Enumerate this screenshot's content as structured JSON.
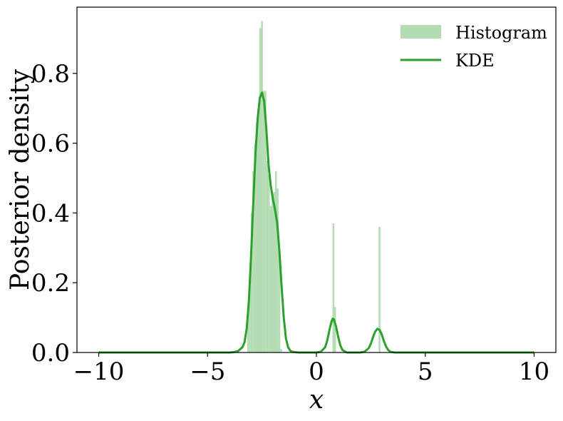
{
  "chart_data": {
    "type": "bar",
    "xlabel": "x",
    "ylabel": "Posterior density",
    "xlim": [
      -11.0,
      11.0
    ],
    "ylim": [
      0.0,
      0.99
    ],
    "xticks": [
      -10,
      -5,
      0,
      5,
      10
    ],
    "xtick_labels": [
      "−10",
      "−5",
      "0",
      "5",
      "10"
    ],
    "yticks": [
      0.0,
      0.2,
      0.4,
      0.6,
      0.8
    ],
    "ytick_labels": [
      "0.0",
      "0.2",
      "0.4",
      "0.6",
      "0.8"
    ],
    "grid": false,
    "legend_position": "top-right",
    "colors": {
      "histogram": "#b3dcb2",
      "kde": "#2ca02c"
    },
    "series": [
      {
        "name": "Histogram",
        "kind": "histogram",
        "bins": [
          {
            "x0": -3.18,
            "x1": -3.1,
            "value": 0.1
          },
          {
            "x0": -3.1,
            "x1": -3.02,
            "value": 0.18
          },
          {
            "x0": -3.02,
            "x1": -2.94,
            "value": 0.4
          },
          {
            "x0": -2.94,
            "x1": -2.86,
            "value": 0.52
          },
          {
            "x0": -2.86,
            "x1": -2.78,
            "value": 0.6
          },
          {
            "x0": -2.78,
            "x1": -2.7,
            "value": 0.66
          },
          {
            "x0": -2.7,
            "x1": -2.62,
            "value": 0.7
          },
          {
            "x0": -2.62,
            "x1": -2.54,
            "value": 0.93
          },
          {
            "x0": -2.54,
            "x1": -2.46,
            "value": 0.95
          },
          {
            "x0": -2.46,
            "x1": -2.38,
            "value": 0.75
          },
          {
            "x0": -2.38,
            "x1": -2.3,
            "value": 0.75
          },
          {
            "x0": -2.3,
            "x1": -2.22,
            "value": 0.55
          },
          {
            "x0": -2.22,
            "x1": -2.14,
            "value": 0.51
          },
          {
            "x0": -2.14,
            "x1": -2.06,
            "value": 0.42
          },
          {
            "x0": -2.06,
            "x1": -1.98,
            "value": 0.44
          },
          {
            "x0": -1.98,
            "x1": -1.9,
            "value": 0.46
          },
          {
            "x0": -1.9,
            "x1": -1.82,
            "value": 0.52
          },
          {
            "x0": -1.82,
            "x1": -1.74,
            "value": 0.47
          },
          {
            "x0": -1.74,
            "x1": -1.66,
            "value": 0.3
          },
          {
            "x0": -1.66,
            "x1": -1.58,
            "value": 0.01
          },
          {
            "x0": 0.74,
            "x1": 0.82,
            "value": 0.37
          },
          {
            "x0": 0.82,
            "x1": 0.9,
            "value": 0.13
          },
          {
            "x0": 2.86,
            "x1": 2.94,
            "value": 0.36
          }
        ]
      },
      {
        "name": "KDE",
        "kind": "line",
        "x": [
          -10.0,
          -9.0,
          -8.0,
          -7.0,
          -6.0,
          -5.0,
          -4.5,
          -4.0,
          -3.8,
          -3.6,
          -3.4,
          -3.3,
          -3.2,
          -3.1,
          -3.0,
          -2.9,
          -2.8,
          -2.7,
          -2.6,
          -2.5,
          -2.4,
          -2.3,
          -2.2,
          -2.1,
          -2.0,
          -1.9,
          -1.8,
          -1.7,
          -1.6,
          -1.5,
          -1.4,
          -1.3,
          -1.2,
          -1.1,
          -1.0,
          -0.8,
          -0.6,
          -0.4,
          -0.2,
          0.0,
          0.2,
          0.4,
          0.5,
          0.6,
          0.7,
          0.75,
          0.8,
          0.9,
          1.0,
          1.1,
          1.2,
          1.4,
          1.6,
          1.8,
          2.0,
          2.2,
          2.4,
          2.5,
          2.6,
          2.7,
          2.8,
          2.9,
          3.0,
          3.1,
          3.2,
          3.3,
          3.4,
          3.6,
          3.8,
          4.0,
          5.0,
          6.0,
          7.0,
          8.0,
          9.0,
          10.0
        ],
        "y": [
          0.0,
          0.0,
          0.0,
          0.0,
          0.0,
          0.0,
          0.0,
          0.0,
          0.001,
          0.004,
          0.015,
          0.03,
          0.07,
          0.15,
          0.28,
          0.43,
          0.57,
          0.67,
          0.73,
          0.745,
          0.72,
          0.64,
          0.54,
          0.48,
          0.44,
          0.41,
          0.37,
          0.29,
          0.19,
          0.1,
          0.04,
          0.015,
          0.005,
          0.002,
          0.001,
          0.0,
          0.0,
          0.0,
          0.0,
          0.0,
          0.002,
          0.015,
          0.035,
          0.065,
          0.09,
          0.097,
          0.095,
          0.075,
          0.045,
          0.02,
          0.007,
          0.0,
          0.0,
          0.0,
          0.0,
          0.002,
          0.012,
          0.025,
          0.044,
          0.06,
          0.068,
          0.065,
          0.052,
          0.033,
          0.017,
          0.007,
          0.002,
          0.0,
          0.0,
          0.0,
          0.0,
          0.0,
          0.0,
          0.0,
          0.0,
          0.0
        ]
      }
    ]
  }
}
